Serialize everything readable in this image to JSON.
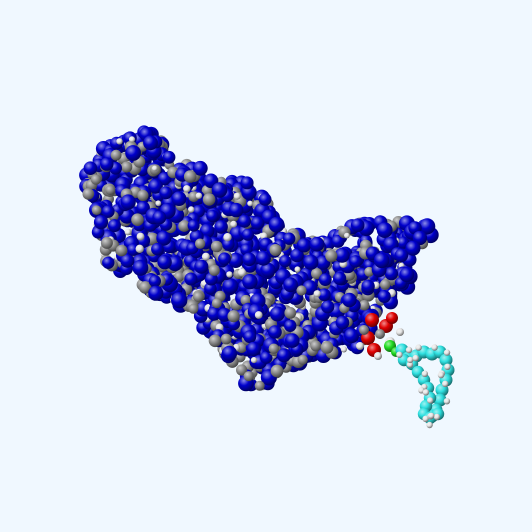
{
  "scene": {
    "background_color": "#f0f8ff",
    "render_style": "space-filling",
    "atom_colors": {
      "protein_primary": "#0000cc",
      "protein_carbon": "#8f8f8f",
      "hydrogen": "#e6e6e6",
      "oxygen": "#e00000",
      "phosphorus": "#22dd22",
      "ligand_carbon": "#2ee0e0"
    }
  }
}
